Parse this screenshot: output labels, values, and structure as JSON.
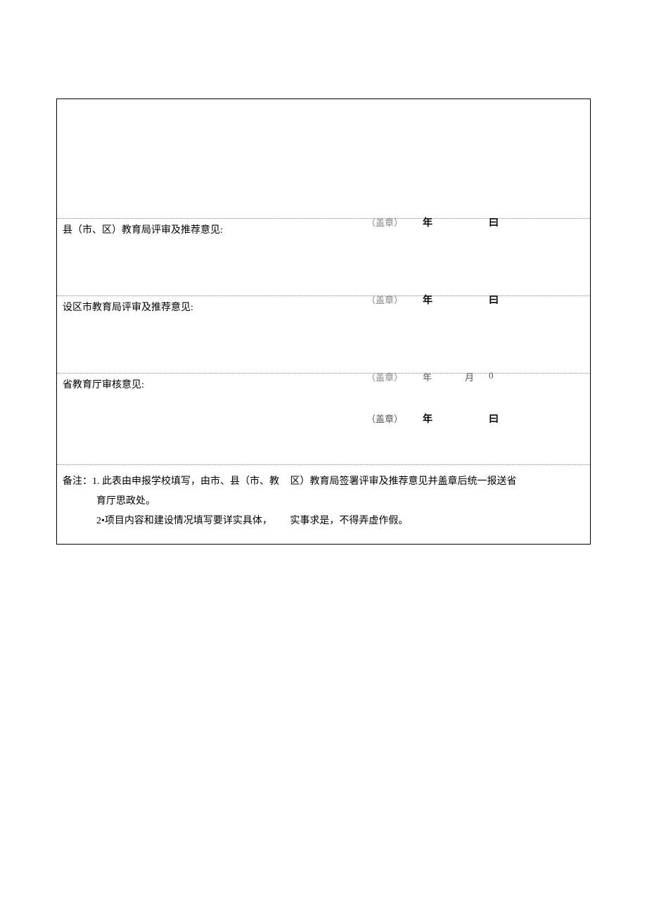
{
  "colors": {
    "border": "#000000",
    "dotted_border": "#888888",
    "text": "#000000",
    "muted": "#888888",
    "background": "#ffffff"
  },
  "typography": {
    "font_family": "SimSun",
    "base_fontsize_pt": 11
  },
  "rows": {
    "top_empty": {
      "seal": "（盖章）",
      "year": "年",
      "day": "曰"
    },
    "county": {
      "title": "县（市、区）教育局评审及推荐意见:",
      "seal": "（盖章）",
      "year": "年",
      "day": "曰"
    },
    "city": {
      "title": "设区市教育局评审及推荐意见:",
      "seal": "（盖章）",
      "year": "年",
      "month": "月",
      "day": "0"
    },
    "province": {
      "title": "省教育厅审核意见:",
      "seal": "（盖章）",
      "year": "年",
      "day": "曰"
    },
    "notes": {
      "line1_a": "备注：1. 此表由申报学校填写，由市、县（市、教",
      "line1_b": "区）教育局签署评审及推荐意见并盖章后统一报送省",
      "line1_c": "育厅思政处。",
      "line2_a": "2•项目内容和建设情况填写要详实具体，",
      "line2_b": "实事求是，不得弄虚作假。"
    }
  }
}
